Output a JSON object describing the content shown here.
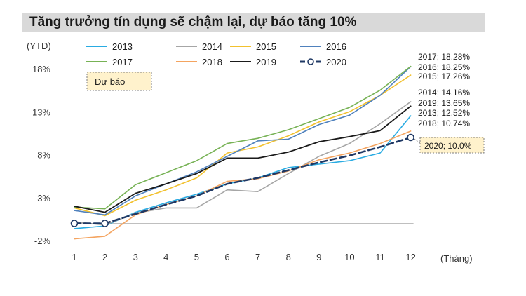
{
  "title": "Tăng trưởng tín dụng sẽ chậm lại, dự báo tăng 10%",
  "forecast_box": "Dự báo",
  "chart_data": {
    "type": "line",
    "xlabel": "(Tháng)",
    "ylabel": "(YTD)",
    "x": [
      1,
      2,
      3,
      4,
      5,
      6,
      7,
      8,
      9,
      10,
      11,
      12
    ],
    "x_tick_labels": [
      "1",
      "2",
      "3",
      "4",
      "5",
      "6",
      "7",
      "8",
      "9",
      "10",
      "11",
      "12"
    ],
    "ylim": [
      -2,
      19
    ],
    "yticks": [
      -2,
      3,
      8,
      13,
      18
    ],
    "ytick_labels": [
      "-2%",
      "3%",
      "8%",
      "13%",
      "18%"
    ],
    "grid": false,
    "legend_position": "top",
    "series": [
      {
        "name": "2013",
        "color": "#29abe2",
        "width": 1.6,
        "dashed": false,
        "markers": false,
        "values": [
          -0.6,
          -0.3,
          1.3,
          2.4,
          3.4,
          4.6,
          5.3,
          6.5,
          6.9,
          7.3,
          8.2,
          12.52
        ]
      },
      {
        "name": "2014",
        "color": "#a6a6a6",
        "width": 1.6,
        "dashed": false,
        "markers": false,
        "values": [
          0.2,
          -0.2,
          1.2,
          1.8,
          1.8,
          3.9,
          3.7,
          5.8,
          7.8,
          9.3,
          11.6,
          14.16
        ]
      },
      {
        "name": "2015",
        "color": "#f2c12e",
        "width": 1.6,
        "dashed": false,
        "markers": false,
        "values": [
          1.8,
          0.9,
          2.7,
          3.9,
          5.3,
          8.2,
          8.9,
          10.2,
          11.8,
          13.0,
          14.9,
          17.26
        ]
      },
      {
        "name": "2016",
        "color": "#4f81bd",
        "width": 1.6,
        "dashed": false,
        "markers": false,
        "values": [
          1.5,
          1.0,
          3.2,
          4.6,
          6.0,
          7.8,
          9.6,
          9.8,
          11.5,
          12.6,
          14.9,
          18.25
        ]
      },
      {
        "name": "2017",
        "color": "#77b255",
        "width": 1.6,
        "dashed": false,
        "markers": false,
        "values": [
          1.9,
          1.7,
          4.5,
          5.9,
          7.3,
          9.3,
          9.9,
          10.9,
          12.2,
          13.5,
          15.5,
          18.28
        ]
      },
      {
        "name": "2018",
        "color": "#f4a460",
        "width": 1.6,
        "dashed": false,
        "markers": false,
        "values": [
          -1.8,
          -1.5,
          1.0,
          2.2,
          3.2,
          4.9,
          5.2,
          6.1,
          7.4,
          8.2,
          9.3,
          10.74
        ]
      },
      {
        "name": "2019",
        "color": "#1a1a1a",
        "width": 1.8,
        "dashed": false,
        "markers": false,
        "values": [
          2.0,
          1.3,
          3.5,
          4.6,
          5.8,
          7.6,
          7.6,
          8.3,
          9.5,
          10.1,
          10.8,
          13.65
        ]
      },
      {
        "name": "2020",
        "color": "#1f3864",
        "width": 2.6,
        "dashed": true,
        "markers": true,
        "values": [
          0.0,
          0.0,
          1.1,
          2.2,
          3.2,
          4.6,
          5.3,
          6.2,
          7.1,
          7.9,
          8.9,
          10.0
        ]
      }
    ],
    "annotations": [
      "2017; 18.28%",
      "2016; 18.25%",
      "2015; 17.26%",
      "2014; 14.16%",
      "2019; 13.65%",
      "2013; 12.52%",
      "2018; 10.74%",
      "2020; 10.0%"
    ]
  }
}
